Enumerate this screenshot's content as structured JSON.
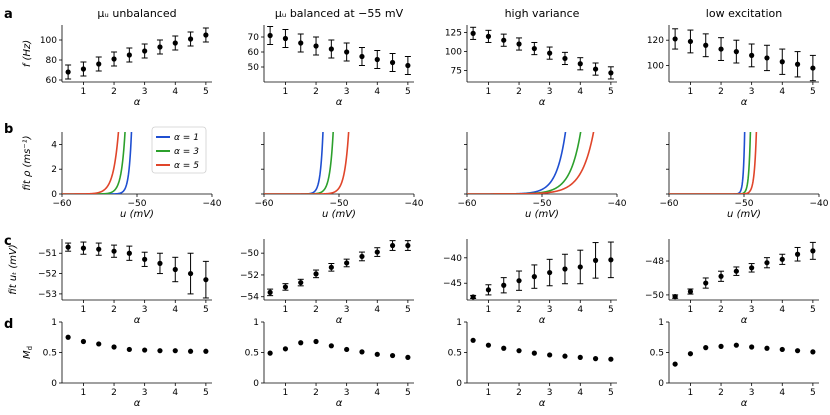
{
  "column_titles": [
    "μu unbalanced",
    "μu balanced at −55 mV",
    "high variance",
    "low excitation"
  ],
  "row_labels": [
    "a",
    "b",
    "c",
    "d"
  ],
  "legend": {
    "entries": [
      "α = 1",
      "α = 3",
      "α = 5"
    ],
    "colors": [
      "#1f4fd1",
      "#2ca02c",
      "#e0452a"
    ]
  },
  "chart_data": [
    {
      "type": "errorbar",
      "row": "a",
      "ylabel": "f (Hz)",
      "xlabel": "α",
      "xlim": [
        0.3,
        5.2
      ],
      "xticks": [
        1,
        2,
        3,
        4,
        5
      ],
      "x": [
        0.5,
        1,
        1.5,
        2,
        2.5,
        3,
        3.5,
        4,
        4.5,
        5
      ],
      "panels": [
        {
          "column": "μu unbalanced",
          "ylim": [
            58,
            115
          ],
          "yticks": [
            60,
            80,
            100
          ],
          "y": [
            68,
            71,
            76,
            81,
            85,
            89,
            93,
            97,
            101,
            105
          ],
          "err": [
            7,
            7,
            7,
            7,
            7,
            7,
            7,
            7,
            7,
            7
          ]
        },
        {
          "column": "μu balanced at −55 mV",
          "ylim": [
            40,
            78
          ],
          "yticks": [
            50,
            60,
            70
          ],
          "y": [
            71,
            69,
            66,
            64,
            62,
            60,
            57,
            55,
            53,
            51
          ],
          "err": [
            6,
            6,
            6,
            6,
            6,
            6,
            6,
            6,
            6,
            6
          ]
        },
        {
          "column": "high variance",
          "ylim": [
            60,
            135
          ],
          "yticks": [
            75,
            100,
            125
          ],
          "y": [
            124,
            120,
            115,
            110,
            104,
            98,
            91,
            84,
            77,
            72
          ],
          "err": [
            8,
            8,
            8,
            8,
            8,
            8,
            8,
            8,
            8,
            8
          ]
        },
        {
          "column": "low excitation",
          "ylim": [
            87,
            132
          ],
          "yticks": [
            100,
            120
          ],
          "y": [
            121,
            119,
            116,
            113,
            111,
            108,
            106,
            103,
            101,
            98
          ],
          "err": [
            8,
            9,
            9,
            9,
            9,
            9,
            10,
            10,
            10,
            10
          ]
        }
      ]
    },
    {
      "type": "line",
      "row": "b",
      "ylabel": "fit ρ (ms⁻¹)",
      "xlabel": "u (mV)",
      "xlim": [
        -60,
        -40
      ],
      "xticks": [
        -60,
        -50,
        -40
      ],
      "ylim": [
        0,
        5
      ],
      "yticks": [
        0,
        2,
        4
      ],
      "series_names": [
        "α = 1",
        "α = 3",
        "α = 5"
      ],
      "panels": [
        {
          "column": "μu unbalanced",
          "thresholds": [
            -51.3,
            -52.4,
            -53.6
          ],
          "widths": [
            0.35,
            0.5,
            0.7
          ]
        },
        {
          "column": "μu balanced at −55 mV",
          "thresholds": [
            -52.7,
            -51.5,
            -49.6
          ],
          "widths": [
            0.35,
            0.45,
            0.55
          ]
        },
        {
          "column": "high variance",
          "thresholds": [
            -48.8,
            -47.1,
            -45.7
          ],
          "widths": [
            1.2,
            1.4,
            1.6
          ]
        },
        {
          "column": "low excitation",
          "thresholds": [
            -50.2,
            -49.5,
            -48.8
          ],
          "widths": [
            0.18,
            0.22,
            0.28
          ]
        }
      ]
    },
    {
      "type": "errorbar",
      "row": "c",
      "ylabel": "fit uT (mV)",
      "xlabel": "α",
      "xlim": [
        0.3,
        5.2
      ],
      "xticks": [
        1,
        2,
        3,
        4,
        5
      ],
      "x": [
        0.5,
        1,
        1.5,
        2,
        2.5,
        3,
        3.5,
        4,
        4.5,
        5
      ],
      "panels": [
        {
          "column": "μu unbalanced",
          "ylim": [
            -53.3,
            -50.3
          ],
          "yticks": [
            -53,
            -52,
            -51
          ],
          "y": [
            -50.7,
            -50.75,
            -50.8,
            -50.9,
            -51.0,
            -51.3,
            -51.5,
            -51.8,
            -52.0,
            -52.3
          ],
          "err": [
            0.2,
            0.3,
            0.3,
            0.3,
            0.35,
            0.35,
            0.5,
            0.6,
            1.0,
            0.9
          ]
        },
        {
          "column": "μu balanced at −55 mV",
          "ylim": [
            -54.3,
            -48.7
          ],
          "yticks": [
            -54,
            -52,
            -50
          ],
          "y": [
            -53.6,
            -53.1,
            -52.7,
            -51.9,
            -51.3,
            -50.9,
            -50.3,
            -49.9,
            -49.3,
            -49.3
          ],
          "err": [
            0.3,
            0.3,
            0.3,
            0.35,
            0.35,
            0.35,
            0.4,
            0.4,
            0.45,
            0.45
          ]
        },
        {
          "column": "high variance",
          "ylim": [
            -48.3,
            -36.3
          ],
          "yticks": [
            -45,
            -40
          ],
          "y": [
            -47.7,
            -46.3,
            -45.4,
            -44.5,
            -43.7,
            -42.9,
            -42.2,
            -41.8,
            -40.5,
            -40.4
          ],
          "err": [
            0.3,
            1.0,
            1.5,
            1.9,
            2.3,
            2.6,
            2.9,
            3.3,
            3.5,
            3.5
          ]
        },
        {
          "column": "low excitation",
          "ylim": [
            -50.3,
            -46.7
          ],
          "yticks": [
            -50,
            -48
          ],
          "y": [
            -50.1,
            -49.8,
            -49.3,
            -48.9,
            -48.6,
            -48.4,
            -48.1,
            -47.9,
            -47.6,
            -47.4
          ],
          "err": [
            0.1,
            0.15,
            0.3,
            0.3,
            0.25,
            0.25,
            0.3,
            0.3,
            0.4,
            0.5
          ]
        }
      ]
    },
    {
      "type": "scatter",
      "row": "d",
      "ylabel": "M_d",
      "xlabel": "α",
      "xlim": [
        0.3,
        5.2
      ],
      "xticks": [
        1,
        2,
        3,
        4,
        5
      ],
      "ylim": [
        0,
        1.0
      ],
      "yticks": [
        0.0,
        0.5,
        1.0
      ],
      "x": [
        0.5,
        1,
        1.5,
        2,
        2.5,
        3,
        3.5,
        4,
        4.5,
        5
      ],
      "panels": [
        {
          "column": "μu unbalanced",
          "y": [
            0.75,
            0.68,
            0.64,
            0.59,
            0.55,
            0.54,
            0.53,
            0.53,
            0.52,
            0.52
          ]
        },
        {
          "column": "μu balanced at −55 mV",
          "y": [
            0.49,
            0.56,
            0.66,
            0.68,
            0.61,
            0.55,
            0.51,
            0.47,
            0.45,
            0.42
          ]
        },
        {
          "column": "high variance",
          "y": [
            0.7,
            0.62,
            0.57,
            0.53,
            0.49,
            0.46,
            0.44,
            0.42,
            0.4,
            0.39
          ]
        },
        {
          "column": "low excitation",
          "y": [
            0.31,
            0.48,
            0.58,
            0.6,
            0.62,
            0.59,
            0.57,
            0.55,
            0.53,
            0.51
          ]
        }
      ]
    }
  ]
}
